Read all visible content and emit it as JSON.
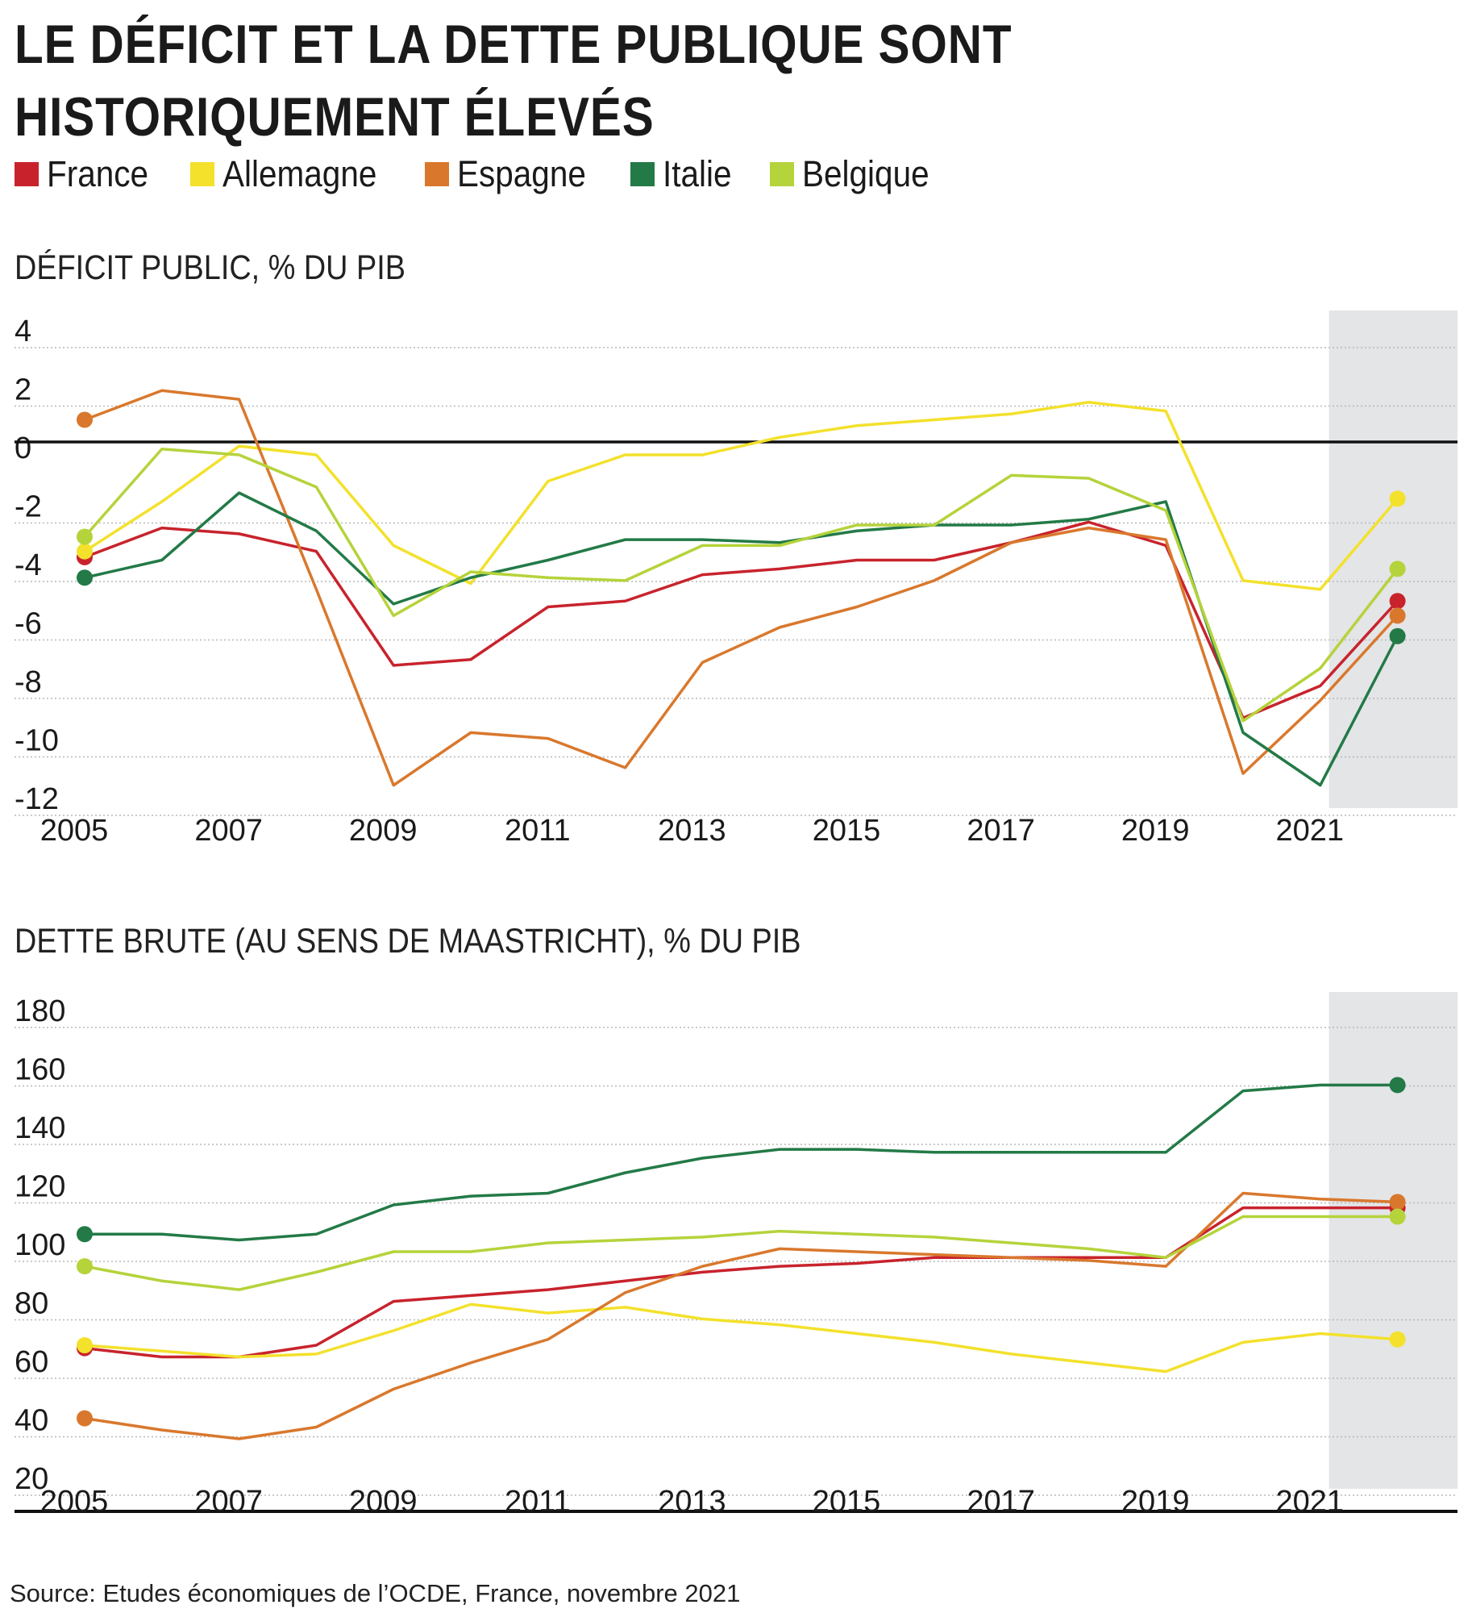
{
  "title": "LE DÉFICIT ET LA DETTE PUBLIQUE SONT HISTORIQUEMENT ÉLEVÉS",
  "legend": [
    {
      "label": "France",
      "color": "#c8232c"
    },
    {
      "label": "Allemagne",
      "color": "#f3e12c"
    },
    {
      "label": "Espagne",
      "color": "#d9782d"
    },
    {
      "label": "Italie",
      "color": "#237a47"
    },
    {
      "label": "Belgique",
      "color": "#b5d33b"
    }
  ],
  "source": "Source: Etudes économiques de l’OCDE, France, novembre 2021",
  "chart_data": [
    {
      "type": "line",
      "title": "DÉFICIT PUBLIC, % DU PIB",
      "x": [
        2005,
        2006,
        2007,
        2008,
        2009,
        2010,
        2011,
        2012,
        2013,
        2014,
        2015,
        2016,
        2017,
        2018,
        2019,
        2020,
        2021,
        2022
      ],
      "x_tick_labels": [
        "2005",
        "2007",
        "2009",
        "2011",
        "2013",
        "2015",
        "2017",
        "2019",
        "2021"
      ],
      "y_ticks": [
        "4",
        "2",
        "0",
        "-2",
        "-4",
        "-6",
        "-8",
        "-10",
        "-12"
      ],
      "ylim": [
        -12,
        4
      ],
      "shaded_from": 2020.8,
      "series": [
        {
          "name": "France",
          "color": "#c8232c",
          "values": [
            -3.5,
            -2.5,
            -2.7,
            -3.3,
            -7.2,
            -7.0,
            -5.2,
            -5.0,
            -4.1,
            -3.9,
            -3.6,
            -3.6,
            -3.0,
            -2.3,
            -3.1,
            -9.0,
            -7.9,
            -5.0
          ]
        },
        {
          "name": "Allemagne",
          "color": "#f3e12c",
          "values": [
            -3.3,
            -1.6,
            0.3,
            0.0,
            -3.1,
            -4.4,
            -0.9,
            0.0,
            0.0,
            0.6,
            1.0,
            1.2,
            1.4,
            1.8,
            1.5,
            -4.3,
            -4.6,
            -1.5
          ]
        },
        {
          "name": "Espagne",
          "color": "#d9782d",
          "values": [
            1.2,
            2.2,
            1.9,
            -4.6,
            -11.3,
            -9.5,
            -9.7,
            -10.7,
            -7.1,
            -5.9,
            -5.2,
            -4.3,
            -3.0,
            -2.5,
            -2.9,
            -10.9,
            -8.4,
            -5.5
          ]
        },
        {
          "name": "Italie",
          "color": "#237a47",
          "values": [
            -4.2,
            -3.6,
            -1.3,
            -2.6,
            -5.1,
            -4.2,
            -3.6,
            -2.9,
            -2.9,
            -3.0,
            -2.6,
            -2.4,
            -2.4,
            -2.2,
            -1.6,
            -9.5,
            -11.3,
            -6.2
          ]
        },
        {
          "name": "Belgique",
          "color": "#b5d33b",
          "values": [
            -2.8,
            0.2,
            0.0,
            -1.1,
            -5.5,
            -4.0,
            -4.2,
            -4.3,
            -3.1,
            -3.1,
            -2.4,
            -2.4,
            -0.7,
            -0.8,
            -1.9,
            -9.1,
            -7.3,
            -3.9
          ]
        }
      ]
    },
    {
      "type": "line",
      "title": "DETTE BRUTE (AU SENS DE MAASTRICHT), % DU PIB",
      "x": [
        2005,
        2006,
        2007,
        2008,
        2009,
        2010,
        2011,
        2012,
        2013,
        2014,
        2015,
        2016,
        2017,
        2018,
        2019,
        2020,
        2021,
        2022
      ],
      "x_tick_labels": [
        "2005",
        "2007",
        "2009",
        "2011",
        "2013",
        "2015",
        "2017",
        "2019",
        "2021"
      ],
      "y_ticks": [
        "180",
        "160",
        "140",
        "120",
        "100",
        "80",
        "60",
        "40",
        "20"
      ],
      "ylim": [
        20,
        180
      ],
      "shaded_from": 2020.8,
      "series": [
        {
          "name": "France",
          "color": "#c8232c",
          "values": [
            67,
            64,
            64,
            68,
            83,
            85,
            87,
            90,
            93,
            95,
            96,
            98,
            98,
            98,
            98,
            115,
            115,
            115
          ]
        },
        {
          "name": "Allemagne",
          "color": "#f3e12c",
          "values": [
            68,
            66,
            64,
            65,
            73,
            82,
            79,
            81,
            77,
            75,
            72,
            69,
            65,
            62,
            59,
            69,
            72,
            70
          ]
        },
        {
          "name": "Espagne",
          "color": "#d9782d",
          "values": [
            43,
            39,
            36,
            40,
            53,
            62,
            70,
            86,
            95,
            101,
            100,
            99,
            98,
            97,
            95,
            120,
            118,
            117
          ]
        },
        {
          "name": "Italie",
          "color": "#237a47",
          "values": [
            106,
            106,
            104,
            106,
            116,
            119,
            120,
            127,
            132,
            135,
            135,
            134,
            134,
            134,
            134,
            155,
            157,
            157
          ]
        },
        {
          "name": "Belgique",
          "color": "#b5d33b",
          "values": [
            95,
            90,
            87,
            93,
            100,
            100,
            103,
            104,
            105,
            107,
            106,
            105,
            103,
            101,
            98,
            112,
            112,
            112
          ]
        }
      ]
    }
  ]
}
